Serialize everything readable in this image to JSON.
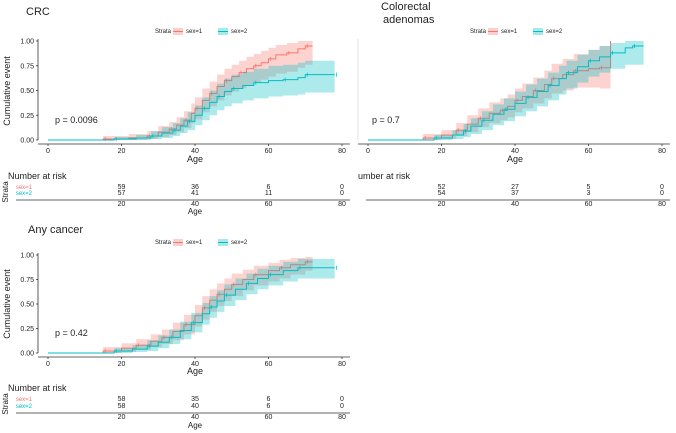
{
  "colors": {
    "sex1": "#F8766D",
    "sex2": "#00BFC4",
    "sex1_fill": "#F8766D",
    "sex2_fill": "#00BFC4",
    "axis": "#333333",
    "text": "#222222"
  },
  "chart_data": [
    {
      "id": "crc",
      "type": "line",
      "title": "CRC",
      "xlabel": "Age",
      "ylabel": "Cumulative event",
      "xlim": [
        0,
        80
      ],
      "ylim": [
        0,
        1
      ],
      "xticks": [
        "0",
        "20",
        "40",
        "60",
        "80"
      ],
      "yticks": [
        "0.00",
        "0.25",
        "0.50",
        "0.75",
        "1.00"
      ],
      "legend": {
        "title": "Strata",
        "entries": [
          "sex=1",
          "sex=2"
        ],
        "position": "top"
      },
      "pvalue": "p = 0.0096",
      "series": [
        {
          "name": "sex=1",
          "x": [
            0,
            15,
            22,
            27,
            30,
            33,
            35,
            37,
            39,
            40,
            42,
            44,
            46,
            48,
            50,
            52,
            54,
            56,
            58,
            60,
            62,
            65,
            68,
            70,
            72
          ],
          "y": [
            0,
            0.01,
            0.02,
            0.04,
            0.08,
            0.11,
            0.15,
            0.2,
            0.27,
            0.32,
            0.4,
            0.47,
            0.54,
            0.6,
            0.64,
            0.68,
            0.72,
            0.75,
            0.78,
            0.82,
            0.86,
            0.88,
            0.92,
            0.95,
            0.95
          ],
          "lower": [
            0,
            0,
            0,
            0.01,
            0.03,
            0.05,
            0.08,
            0.12,
            0.17,
            0.21,
            0.28,
            0.34,
            0.4,
            0.45,
            0.49,
            0.52,
            0.55,
            0.58,
            0.61,
            0.64,
            0.67,
            0.69,
            0.73,
            0.76,
            0.76
          ],
          "upper": [
            0,
            0.04,
            0.06,
            0.09,
            0.14,
            0.18,
            0.23,
            0.29,
            0.37,
            0.43,
            0.52,
            0.59,
            0.66,
            0.72,
            0.76,
            0.8,
            0.84,
            0.87,
            0.9,
            0.93,
            0.96,
            0.98,
            1,
            1,
            1
          ]
        },
        {
          "name": "sex=2",
          "x": [
            0,
            18,
            24,
            28,
            31,
            34,
            36,
            38,
            40,
            42,
            44,
            46,
            48,
            50,
            53,
            56,
            60,
            64,
            68,
            70,
            72,
            78
          ],
          "y": [
            0,
            0.01,
            0.02,
            0.04,
            0.07,
            0.1,
            0.14,
            0.19,
            0.25,
            0.32,
            0.38,
            0.44,
            0.49,
            0.52,
            0.55,
            0.58,
            0.6,
            0.61,
            0.63,
            0.66,
            0.66,
            0.66
          ],
          "lower": [
            0,
            0,
            0,
            0.01,
            0.02,
            0.04,
            0.07,
            0.1,
            0.15,
            0.2,
            0.25,
            0.3,
            0.34,
            0.37,
            0.4,
            0.42,
            0.44,
            0.45,
            0.46,
            0.48,
            0.48,
            0.48
          ],
          "upper": [
            0,
            0.03,
            0.05,
            0.09,
            0.13,
            0.17,
            0.22,
            0.28,
            0.35,
            0.43,
            0.5,
            0.57,
            0.62,
            0.66,
            0.69,
            0.72,
            0.75,
            0.76,
            0.78,
            0.8,
            0.8,
            0.8
          ]
        }
      ],
      "risk_table": {
        "title": "Number at risk",
        "strata_label": "Strata",
        "rows": [
          {
            "label": "sex=1",
            "values": [
              "59",
              "36",
              "6",
              "0"
            ]
          },
          {
            "label": "sex=2",
            "values": [
              "57",
              "41",
              "11",
              "0"
            ]
          }
        ],
        "times": [
          "20",
          "40",
          "60",
          "80"
        ],
        "xlabel": "Age"
      }
    },
    {
      "id": "adenomas",
      "type": "line",
      "title": "Colorectal adenomas",
      "xlabel": "Age",
      "ylabel": "",
      "xlim": [
        0,
        80
      ],
      "ylim": [
        0,
        1
      ],
      "xticks": [
        "0",
        "20",
        "40",
        "60",
        "80"
      ],
      "yticks": [],
      "legend": {
        "title": "Strata",
        "entries": [
          "sex=1",
          "sex=2"
        ],
        "position": "top"
      },
      "pvalue": "p = 0.7",
      "series": [
        {
          "name": "sex=1",
          "x": [
            0,
            15,
            20,
            24,
            27,
            30,
            33,
            36,
            38,
            40,
            42,
            45,
            48,
            50,
            53,
            56,
            60,
            63,
            66
          ],
          "y": [
            0,
            0.02,
            0.05,
            0.1,
            0.16,
            0.22,
            0.27,
            0.3,
            0.34,
            0.4,
            0.44,
            0.5,
            0.56,
            0.62,
            0.66,
            0.7,
            0.72,
            0.73,
            1
          ],
          "lower": [
            0,
            0,
            0.01,
            0.04,
            0.08,
            0.13,
            0.17,
            0.2,
            0.23,
            0.28,
            0.32,
            0.37,
            0.42,
            0.47,
            0.5,
            0.53,
            0.53,
            0.52,
            0.52
          ],
          "upper": [
            0,
            0.06,
            0.1,
            0.17,
            0.25,
            0.32,
            0.38,
            0.42,
            0.46,
            0.52,
            0.57,
            0.63,
            0.7,
            0.77,
            0.82,
            0.87,
            0.91,
            0.95,
            1
          ]
        },
        {
          "name": "sex=2",
          "x": [
            0,
            18,
            23,
            26,
            28,
            31,
            34,
            37,
            40,
            43,
            46,
            49,
            52,
            54,
            57,
            60,
            63,
            66,
            70,
            72,
            75
          ],
          "y": [
            0,
            0.02,
            0.05,
            0.09,
            0.14,
            0.2,
            0.26,
            0.31,
            0.37,
            0.43,
            0.49,
            0.55,
            0.62,
            0.68,
            0.74,
            0.8,
            0.84,
            0.88,
            0.93,
            0.95,
            0.95
          ],
          "lower": [
            0,
            0,
            0.01,
            0.03,
            0.06,
            0.1,
            0.15,
            0.19,
            0.24,
            0.29,
            0.34,
            0.4,
            0.46,
            0.52,
            0.58,
            0.64,
            0.68,
            0.72,
            0.76,
            0.76,
            0.76
          ],
          "upper": [
            0,
            0.05,
            0.1,
            0.16,
            0.22,
            0.29,
            0.36,
            0.42,
            0.49,
            0.56,
            0.62,
            0.68,
            0.75,
            0.8,
            0.86,
            0.91,
            0.95,
            0.98,
            1,
            1,
            1
          ]
        }
      ],
      "risk_table": {
        "title": "umber at risk",
        "strata_label": "",
        "rows": [
          {
            "label": "",
            "values": [
              "52",
              "27",
              "5",
              "0"
            ]
          },
          {
            "label": "",
            "values": [
              "54",
              "37",
              "3",
              "0"
            ]
          }
        ],
        "times": [
          "20",
          "40",
          "60",
          "80"
        ],
        "xlabel": "Age"
      }
    },
    {
      "id": "anycancer",
      "type": "line",
      "title": "Any cancer",
      "xlabel": "Age",
      "ylabel": "Cumulative event",
      "xlim": [
        0,
        80
      ],
      "ylim": [
        0,
        1
      ],
      "xticks": [
        "0",
        "20",
        "40",
        "60",
        "80"
      ],
      "yticks": [
        "0.00",
        "0.25",
        "0.50",
        "0.75",
        "1.00"
      ],
      "legend": {
        "title": "Strata",
        "entries": [
          "sex=1",
          "sex=2"
        ],
        "position": "top"
      },
      "pvalue": "p = 0.42",
      "series": [
        {
          "name": "sex=1",
          "x": [
            0,
            15,
            20,
            24,
            28,
            31,
            34,
            37,
            40,
            42,
            44,
            46,
            48,
            50,
            53,
            56,
            60,
            63,
            66,
            70,
            72
          ],
          "y": [
            0,
            0.02,
            0.05,
            0.08,
            0.12,
            0.16,
            0.22,
            0.29,
            0.38,
            0.46,
            0.54,
            0.6,
            0.65,
            0.7,
            0.75,
            0.8,
            0.84,
            0.87,
            0.9,
            0.93,
            0.93
          ],
          "lower": [
            0,
            0,
            0.01,
            0.03,
            0.06,
            0.09,
            0.13,
            0.19,
            0.27,
            0.34,
            0.42,
            0.48,
            0.53,
            0.58,
            0.64,
            0.69,
            0.73,
            0.76,
            0.8,
            0.84,
            0.84
          ],
          "upper": [
            0,
            0.06,
            0.1,
            0.14,
            0.19,
            0.24,
            0.31,
            0.39,
            0.49,
            0.58,
            0.65,
            0.71,
            0.76,
            0.81,
            0.85,
            0.89,
            0.92,
            0.95,
            0.97,
            0.98,
            0.98
          ]
        },
        {
          "name": "sex=2",
          "x": [
            0,
            18,
            23,
            27,
            30,
            33,
            36,
            39,
            42,
            44,
            46,
            48,
            51,
            54,
            57,
            60,
            64,
            68,
            72,
            78
          ],
          "y": [
            0,
            0.02,
            0.04,
            0.07,
            0.11,
            0.16,
            0.23,
            0.31,
            0.4,
            0.47,
            0.53,
            0.59,
            0.65,
            0.71,
            0.76,
            0.8,
            0.84,
            0.87,
            0.87,
            0.87
          ],
          "lower": [
            0,
            0,
            0.01,
            0.02,
            0.05,
            0.09,
            0.14,
            0.21,
            0.29,
            0.36,
            0.42,
            0.48,
            0.54,
            0.6,
            0.65,
            0.69,
            0.73,
            0.76,
            0.76,
            0.76
          ],
          "upper": [
            0,
            0.05,
            0.08,
            0.13,
            0.18,
            0.24,
            0.32,
            0.41,
            0.51,
            0.58,
            0.64,
            0.7,
            0.76,
            0.81,
            0.86,
            0.89,
            0.93,
            0.96,
            0.96,
            0.96
          ]
        }
      ],
      "risk_table": {
        "title": "Number at risk",
        "strata_label": "Strata",
        "rows": [
          {
            "label": "sex=1",
            "values": [
              "58",
              "35",
              "6",
              "0"
            ]
          },
          {
            "label": "sex=2",
            "values": [
              "58",
              "40",
              "6",
              "0"
            ]
          }
        ],
        "times": [
          "20",
          "40",
          "60",
          "80"
        ],
        "xlabel": "Age"
      }
    }
  ]
}
